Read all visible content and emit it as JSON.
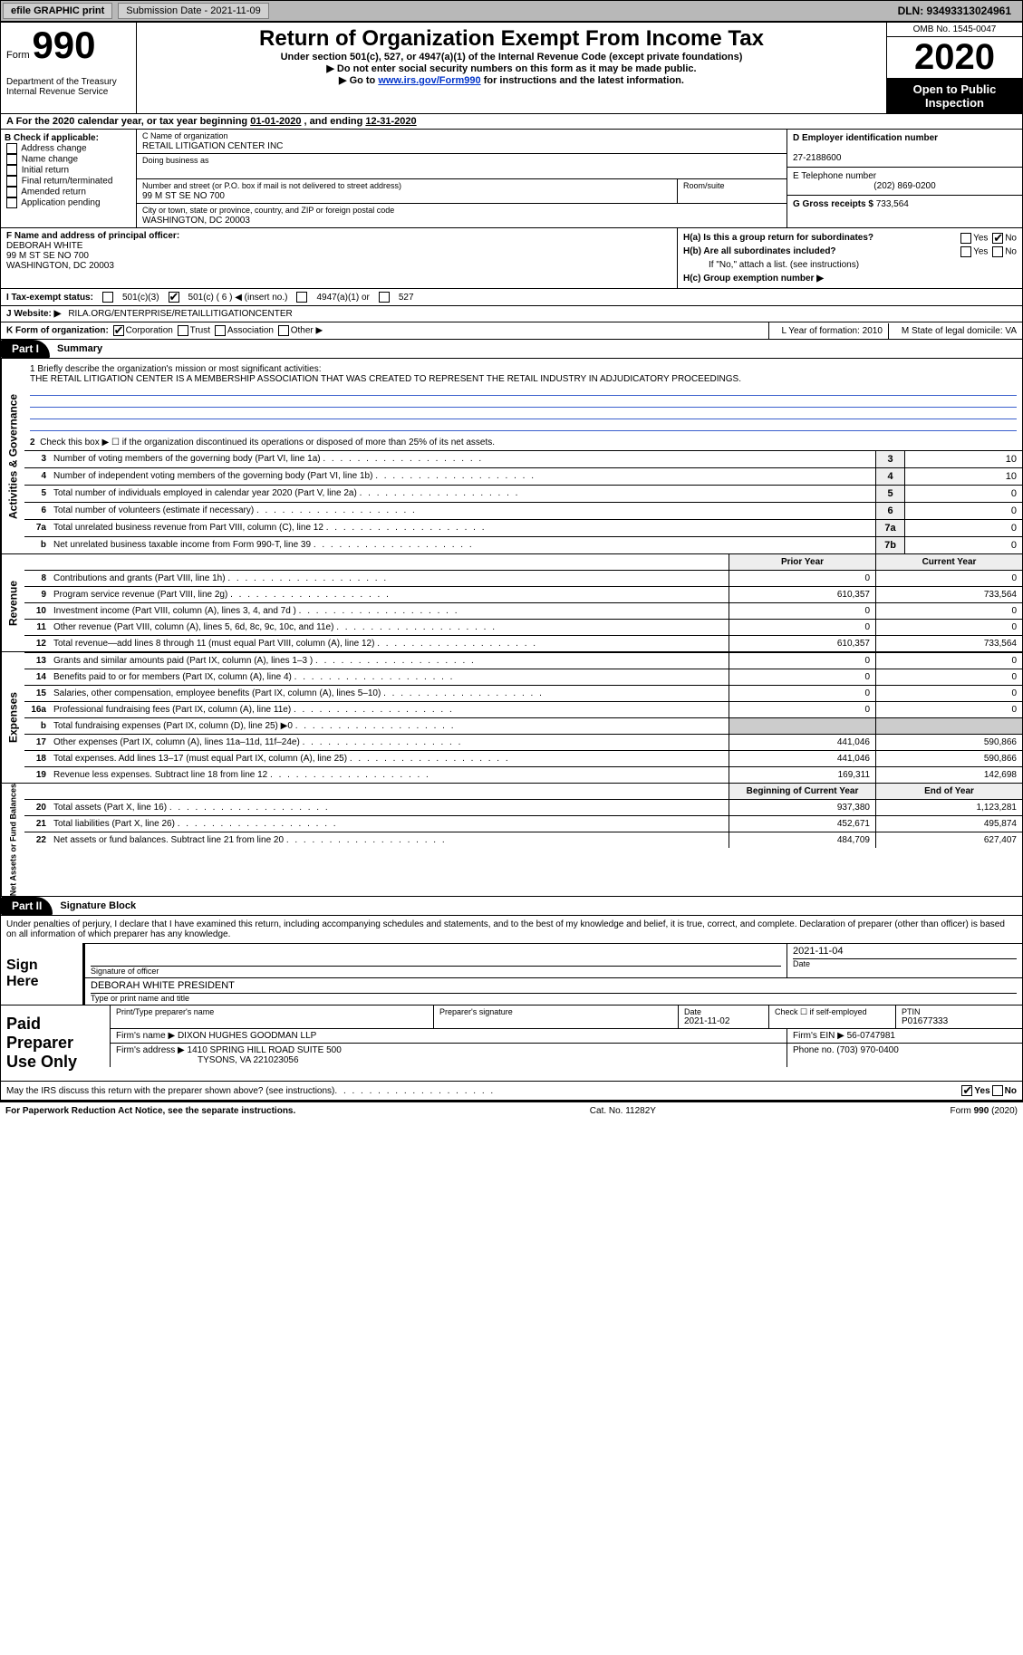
{
  "topbar": {
    "efile": "efile GRAPHIC print",
    "subdate_label": "Submission Date - ",
    "subdate": "2021-11-09",
    "dln": "DLN: 93493313024961"
  },
  "header": {
    "form_label": "Form",
    "form_no": "990",
    "dept1": "Department of the Treasury",
    "dept2": "Internal Revenue Service",
    "title": "Return of Organization Exempt From Income Tax",
    "sub1": "Under section 501(c), 527, or 4947(a)(1) of the Internal Revenue Code (except private foundations)",
    "sub2": "▶ Do not enter social security numbers on this form as it may be made public.",
    "sub3a": "▶ Go to ",
    "sub3_link": "www.irs.gov/Form990",
    "sub3b": " for instructions and the latest information.",
    "omb": "OMB No. 1545-0047",
    "year": "2020",
    "open": "Open to Public Inspection"
  },
  "period": {
    "text_a": "A For the 2020 calendar year, or tax year beginning ",
    "begin": "01-01-2020",
    "text_b": " , and ending ",
    "end": "12-31-2020"
  },
  "boxB": {
    "title": "B Check if applicable:",
    "addr": "Address change",
    "name": "Name change",
    "init": "Initial return",
    "final": "Final return/terminated",
    "amend": "Amended return",
    "app": "Application pending"
  },
  "boxC": {
    "lbl_name": "C Name of organization",
    "org": "RETAIL LITIGATION CENTER INC",
    "lbl_dba": "Doing business as",
    "lbl_addr": "Number and street (or P.O. box if mail is not delivered to street address)",
    "addr": "99 M ST SE NO 700",
    "lbl_room": "Room/suite",
    "lbl_city": "City or town, state or province, country, and ZIP or foreign postal code",
    "city": "WASHINGTON, DC  20003"
  },
  "boxD": {
    "lbl": "D Employer identification number",
    "val": "27-2188600"
  },
  "boxE": {
    "lbl": "E Telephone number",
    "val": "(202) 869-0200"
  },
  "boxG": {
    "lbl": "G Gross receipts $ ",
    "val": "733,564"
  },
  "boxF": {
    "lbl": "F Name and address of principal officer:",
    "name": "DEBORAH WHITE",
    "addr1": "99 M ST SE NO 700",
    "addr2": "WASHINGTON, DC  20003"
  },
  "boxH": {
    "a_lbl": "H(a)  Is this a group return for subordinates?",
    "b_lbl": "H(b)  Are all subordinates included?",
    "b_note": "If \"No,\" attach a list. (see instructions)",
    "c_lbl": "H(c)  Group exemption number ▶",
    "yes": "Yes",
    "no": "No"
  },
  "boxI": {
    "lbl": "I   Tax-exempt status:",
    "o1": "501(c)(3)",
    "o2": "501(c) ( 6 ) ◀ (insert no.)",
    "o3": "4947(a)(1) or",
    "o4": "527"
  },
  "boxJ": {
    "lbl": "J   Website: ▶",
    "val": "RILA.ORG/ENTERPRISE/RETAILLITIGATIONCENTER"
  },
  "boxK": {
    "lbl": "K Form of organization:",
    "corp": "Corporation",
    "trust": "Trust",
    "assoc": "Association",
    "other": "Other ▶"
  },
  "boxLM": {
    "l": "L Year of formation: 2010",
    "m": "M State of legal domicile: VA"
  },
  "part1": {
    "label": "Part I",
    "title": "Summary"
  },
  "actgov": {
    "side": "Activities & Governance",
    "q1_lbl": "1   Briefly describe the organization's mission or most significant activities:",
    "q1_text": "THE RETAIL LITIGATION CENTER IS A MEMBERSHIP ASSOCIATION THAT WAS CREATED TO REPRESENT THE RETAIL INDUSTRY IN ADJUDICATORY PROCEEDINGS.",
    "q2": "Check this box ▶ ☐ if the organization discontinued its operations or disposed of more than 25% of its net assets.",
    "rows": [
      {
        "n": "3",
        "t": "Number of voting members of the governing body (Part VI, line 1a)",
        "b": "3",
        "v": "10"
      },
      {
        "n": "4",
        "t": "Number of independent voting members of the governing body (Part VI, line 1b)",
        "b": "4",
        "v": "10"
      },
      {
        "n": "5",
        "t": "Total number of individuals employed in calendar year 2020 (Part V, line 2a)",
        "b": "5",
        "v": "0"
      },
      {
        "n": "6",
        "t": "Total number of volunteers (estimate if necessary)",
        "b": "6",
        "v": "0"
      },
      {
        "n": "7a",
        "t": "Total unrelated business revenue from Part VIII, column (C), line 12",
        "b": "7a",
        "v": "0"
      },
      {
        "n": "b",
        "t": "Net unrelated business taxable income from Form 990-T, line 39",
        "b": "7b",
        "v": "0"
      }
    ]
  },
  "cols": {
    "prior": "Prior Year",
    "curr": "Current Year",
    "boy": "Beginning of Current Year",
    "eoy": "End of Year"
  },
  "revenue": {
    "side": "Revenue",
    "rows": [
      {
        "n": "8",
        "t": "Contributions and grants (Part VIII, line 1h)",
        "p": "0",
        "c": "0"
      },
      {
        "n": "9",
        "t": "Program service revenue (Part VIII, line 2g)",
        "p": "610,357",
        "c": "733,564"
      },
      {
        "n": "10",
        "t": "Investment income (Part VIII, column (A), lines 3, 4, and 7d )",
        "p": "0",
        "c": "0"
      },
      {
        "n": "11",
        "t": "Other revenue (Part VIII, column (A), lines 5, 6d, 8c, 9c, 10c, and 11e)",
        "p": "0",
        "c": "0"
      },
      {
        "n": "12",
        "t": "Total revenue—add lines 8 through 11 (must equal Part VIII, column (A), line 12)",
        "p": "610,357",
        "c": "733,564"
      }
    ]
  },
  "expenses": {
    "side": "Expenses",
    "rows": [
      {
        "n": "13",
        "t": "Grants and similar amounts paid (Part IX, column (A), lines 1–3 )",
        "p": "0",
        "c": "0"
      },
      {
        "n": "14",
        "t": "Benefits paid to or for members (Part IX, column (A), line 4)",
        "p": "0",
        "c": "0"
      },
      {
        "n": "15",
        "t": "Salaries, other compensation, employee benefits (Part IX, column (A), lines 5–10)",
        "p": "0",
        "c": "0"
      },
      {
        "n": "16a",
        "t": "Professional fundraising fees (Part IX, column (A), line 11e)",
        "p": "0",
        "c": "0"
      },
      {
        "n": "b",
        "t": "Total fundraising expenses (Part IX, column (D), line 25) ▶0",
        "p": "",
        "c": "",
        "shade": true
      },
      {
        "n": "17",
        "t": "Other expenses (Part IX, column (A), lines 11a–11d, 11f–24e)",
        "p": "441,046",
        "c": "590,866"
      },
      {
        "n": "18",
        "t": "Total expenses. Add lines 13–17 (must equal Part IX, column (A), line 25)",
        "p": "441,046",
        "c": "590,866"
      },
      {
        "n": "19",
        "t": "Revenue less expenses. Subtract line 18 from line 12",
        "p": "169,311",
        "c": "142,698"
      }
    ]
  },
  "netassets": {
    "side": "Net Assets or Fund Balances",
    "rows": [
      {
        "n": "20",
        "t": "Total assets (Part X, line 16)",
        "p": "937,380",
        "c": "1,123,281"
      },
      {
        "n": "21",
        "t": "Total liabilities (Part X, line 26)",
        "p": "452,671",
        "c": "495,874"
      },
      {
        "n": "22",
        "t": "Net assets or fund balances. Subtract line 21 from line 20",
        "p": "484,709",
        "c": "627,407"
      }
    ]
  },
  "part2": {
    "label": "Part II",
    "title": "Signature Block"
  },
  "perjury": "Under penalties of perjury, I declare that I have examined this return, including accompanying schedules and statements, and to the best of my knowledge and belief, it is true, correct, and complete. Declaration of preparer (other than officer) is based on all information of which preparer has any knowledge.",
  "sign": {
    "side": "Sign Here",
    "sig_lbl": "Signature of officer",
    "date_lbl": "Date",
    "date": "2021-11-04",
    "name": "DEBORAH WHITE  PRESIDENT",
    "name_lbl": "Type or print name and title"
  },
  "paid": {
    "side": "Paid Preparer Use Only",
    "h_prep": "Print/Type preparer's name",
    "h_sig": "Preparer's signature",
    "h_date": "Date",
    "date": "2021-11-02",
    "h_check": "Check ☐ if self-employed",
    "h_ptin": "PTIN",
    "ptin": "P01677333",
    "firm_lbl": "Firm's name    ▶",
    "firm": "DIXON HUGHES GOODMAN LLP",
    "ein_lbl": "Firm's EIN ▶",
    "ein": "56-0747981",
    "addr_lbl": "Firm's address ▶",
    "addr1": "1410 SPRING HILL ROAD SUITE 500",
    "addr2": "TYSONS, VA  221023056",
    "phone_lbl": "Phone no.",
    "phone": "(703) 970-0400"
  },
  "irs_q": "May the IRS discuss this return with the preparer shown above? (see instructions)",
  "footer": {
    "left": "For Paperwork Reduction Act Notice, see the separate instructions.",
    "mid": "Cat. No. 11282Y",
    "right": "Form 990 (2020)"
  },
  "colors": {
    "topbar_bg": "#b8b8b8",
    "btn_bg": "#d0d0d0",
    "link": "#1a3ec8",
    "shade": "#cccccc",
    "box_shade": "#eeeeee"
  }
}
